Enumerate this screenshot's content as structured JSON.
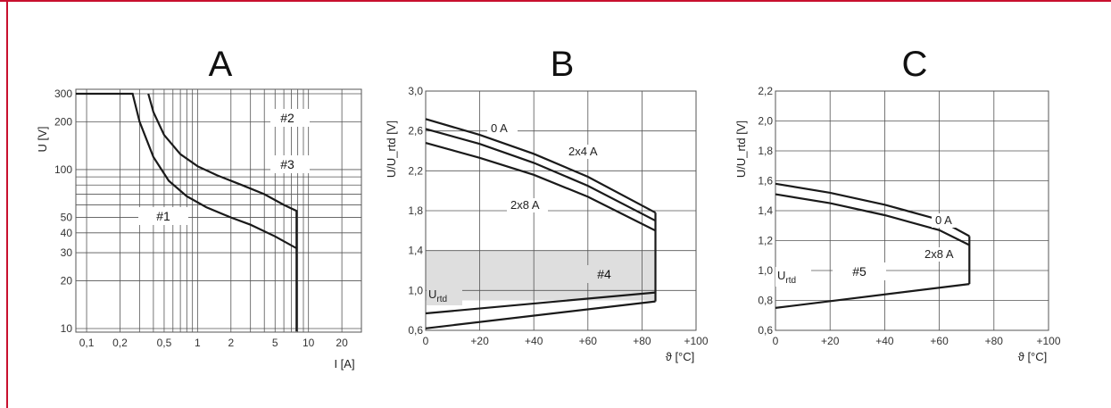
{
  "colors": {
    "frame": "#c8102e",
    "curve": "#1a1a1a",
    "grid": "#555555",
    "band": "#dedede"
  },
  "chart_data": [
    {
      "id": "A",
      "title": "A",
      "type": "line",
      "xscale": "log",
      "yscale": "log",
      "ylabel": "U [V]",
      "xlabel": "I [A]",
      "xlim": [
        0.08,
        30
      ],
      "ylim": [
        9.5,
        320
      ],
      "xticks": [
        0.1,
        0.2,
        0.5,
        1,
        2,
        5,
        10,
        20
      ],
      "xtick_labels": [
        "0,1",
        "0,2",
        "0,5",
        "1",
        "2",
        "5",
        "10",
        "20"
      ],
      "yticks": [
        10,
        20,
        30,
        40,
        50,
        100,
        200,
        300
      ],
      "ytick_labels": [
        "10",
        "20",
        "30",
        "40",
        "50",
        "100",
        "200",
        "300"
      ],
      "grid": true,
      "series": [
        {
          "x": [
            0.08,
            0.26,
            0.3,
            0.4,
            0.55,
            0.8,
            1.2,
            2,
            3,
            5,
            7.8,
            7.8,
            7.8
          ],
          "y": [
            300,
            300,
            200,
            120,
            85,
            68,
            58,
            50,
            45,
            38,
            32,
            20,
            9.6
          ]
        },
        {
          "x": [
            0.36,
            0.4,
            0.5,
            0.7,
            1,
            1.5,
            2.5,
            4,
            6,
            7.8,
            7.8
          ],
          "y": [
            300,
            230,
            165,
            125,
            105,
            92,
            80,
            70,
            60,
            55,
            32
          ]
        }
      ],
      "annotations": [
        "#1",
        "#2",
        "#3"
      ]
    },
    {
      "id": "B",
      "title": "B",
      "type": "line",
      "ylabel": "U/U_rtd [V]",
      "xlabel": "ϑ [°C]",
      "xlim": [
        0,
        100
      ],
      "ylim": [
        0.6,
        3.0
      ],
      "xticks": [
        0,
        20,
        40,
        60,
        80,
        100
      ],
      "xtick_labels": [
        "0",
        "+20",
        "+40",
        "+60",
        "+80",
        "+100"
      ],
      "yticks": [
        0.6,
        1.0,
        1.4,
        1.8,
        2.2,
        2.6,
        3.0
      ],
      "ytick_labels": [
        "0,6",
        "1,0",
        "1,4",
        "1,8",
        "2,2",
        "2,6",
        "3,0"
      ],
      "grid": true,
      "band": {
        "x": [
          0,
          85
        ],
        "y": [
          0.9,
          1.4
        ]
      },
      "series": [
        {
          "name": "0 A",
          "x": [
            0,
            20,
            40,
            60,
            85
          ],
          "y": [
            2.72,
            2.56,
            2.37,
            2.14,
            1.78
          ]
        },
        {
          "name": "2x4 A",
          "x": [
            0,
            20,
            40,
            60,
            85
          ],
          "y": [
            2.62,
            2.47,
            2.28,
            2.05,
            1.7
          ]
        },
        {
          "name": "2x8 A",
          "x": [
            0,
            20,
            40,
            60,
            85
          ],
          "y": [
            2.48,
            2.33,
            2.16,
            1.94,
            1.6
          ]
        },
        {
          "x": [
            0,
            85
          ],
          "y": [
            0.77,
            0.98
          ]
        },
        {
          "x": [
            0,
            85
          ],
          "y": [
            0.62,
            0.89
          ]
        },
        {
          "x": [
            85,
            85
          ],
          "y": [
            0.89,
            1.78
          ]
        }
      ],
      "annotations": [
        "#4",
        "U_rtd"
      ],
      "sub_rtd": "rtd"
    },
    {
      "id": "C",
      "title": "C",
      "type": "line",
      "ylabel": "U/U_rtd [V]",
      "xlabel": "ϑ [°C]",
      "xlim": [
        0,
        100
      ],
      "ylim": [
        0.6,
        2.2
      ],
      "xticks": [
        0,
        20,
        40,
        60,
        80,
        100
      ],
      "xtick_labels": [
        "0",
        "+20",
        "+40",
        "+60",
        "+80",
        "+100"
      ],
      "yticks": [
        0.6,
        0.8,
        1.0,
        1.2,
        1.4,
        1.6,
        1.8,
        2.0,
        2.2
      ],
      "ytick_labels": [
        "0,6",
        "0,8",
        "1,0",
        "1,2",
        "1,4",
        "1,6",
        "1,8",
        "2,0",
        "2,2"
      ],
      "grid": true,
      "series": [
        {
          "name": "0 A",
          "x": [
            0,
            20,
            40,
            60,
            71
          ],
          "y": [
            1.58,
            1.52,
            1.44,
            1.34,
            1.23
          ]
        },
        {
          "name": "2x8 A",
          "x": [
            0,
            20,
            40,
            60,
            71
          ],
          "y": [
            1.51,
            1.45,
            1.37,
            1.27,
            1.17
          ]
        },
        {
          "x": [
            0,
            71
          ],
          "y": [
            0.75,
            0.91
          ]
        },
        {
          "x": [
            71,
            71
          ],
          "y": [
            0.91,
            1.23
          ]
        }
      ],
      "annotations": [
        "#5",
        "U_rtd"
      ],
      "sub_rtd": "rtd"
    }
  ]
}
